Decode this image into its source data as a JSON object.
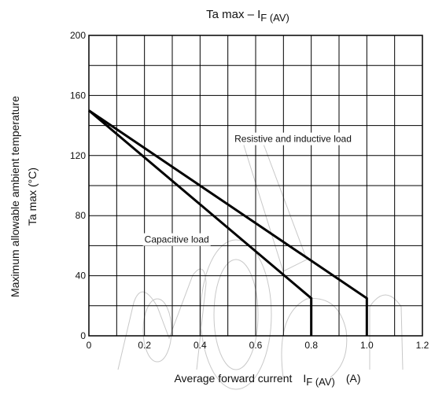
{
  "chart_data": {
    "type": "line",
    "title": "Ta max – I",
    "title_subscript": "F (AV)",
    "xlabel": "Average forward current",
    "xlabel_symbol": "I",
    "xlabel_subscript": "F (AV)",
    "xlabel_unit": "(A)",
    "ylabel_line1": "Maximum allowable ambient temperature",
    "ylabel_line2": "Ta max    (°C)",
    "xlim": [
      0,
      1.2
    ],
    "ylim": [
      0,
      200
    ],
    "x_ticks": [
      "0",
      "0.2",
      "0.4",
      "0.6",
      "0.8",
      "1.0",
      "1.2"
    ],
    "y_ticks": [
      "0",
      "40",
      "80",
      "120",
      "160",
      "200"
    ],
    "grid": true,
    "series": [
      {
        "name": "Resistive and inductive load",
        "x": [
          0,
          1.0,
          1.0
        ],
        "y": [
          150,
          25,
          0
        ]
      },
      {
        "name": "Capacitive load",
        "x": [
          0,
          0.8,
          0.8
        ],
        "y": [
          150,
          25,
          0
        ]
      }
    ],
    "annotations": [
      {
        "text": "Resistive and inductive load",
        "x": 0.945,
        "y": 129
      },
      {
        "text": "Capacitive load",
        "x": 0.2,
        "y": 62
      }
    ]
  }
}
